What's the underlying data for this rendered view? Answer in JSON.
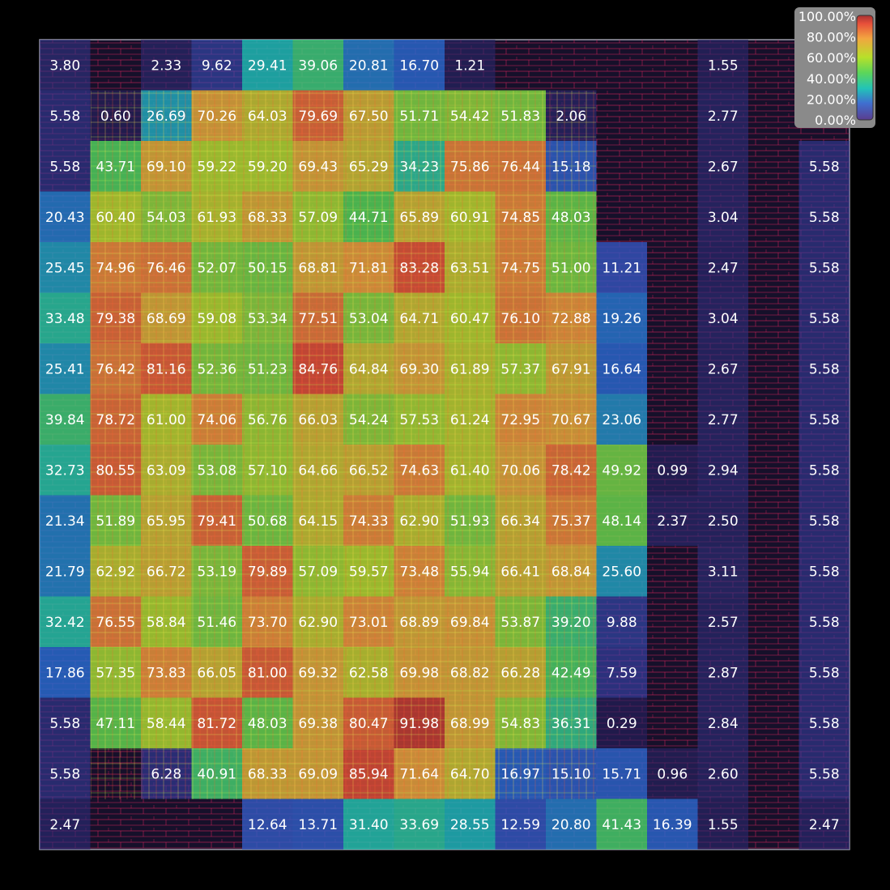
{
  "chart_data": {
    "type": "heatmap",
    "title": "",
    "xlabel": "",
    "ylabel": "",
    "rows": 16,
    "cols": 16,
    "unit": "%",
    "value_range": [
      0,
      100
    ],
    "legend": {
      "placement": "top-right",
      "colormap": [
        "#5a3d8f",
        "#3f6fd0",
        "#22c3b8",
        "#5bd65a",
        "#b8e02a",
        "#f2a540",
        "#e8503a",
        "#a83232"
      ],
      "tick_labels": [
        "100.00%",
        "80.00%",
        "60.00%",
        "40.00%",
        "20.00%",
        "0.00%"
      ]
    },
    "values": [
      [
        "3.80",
        "",
        "2.33",
        "9.62",
        "29.41",
        "39.06",
        "20.81",
        "16.70",
        "1.21",
        "",
        "",
        "",
        "",
        "1.55",
        "",
        ""
      ],
      [
        "5.58",
        "0.60",
        "26.69",
        "70.26",
        "64.03",
        "79.69",
        "67.50",
        "51.71",
        "54.42",
        "51.83",
        "2.06",
        "",
        "",
        "2.77",
        "",
        ""
      ],
      [
        "5.58",
        "43.71",
        "69.10",
        "59.22",
        "59.20",
        "69.43",
        "65.29",
        "34.23",
        "75.86",
        "76.44",
        "15.18",
        "",
        "",
        "2.67",
        "",
        "5.58"
      ],
      [
        "20.43",
        "60.40",
        "54.03",
        "61.93",
        "68.33",
        "57.09",
        "44.71",
        "65.89",
        "60.91",
        "74.85",
        "48.03",
        "",
        "",
        "3.04",
        "",
        "5.58"
      ],
      [
        "25.45",
        "74.96",
        "76.46",
        "52.07",
        "50.15",
        "68.81",
        "71.81",
        "83.28",
        "63.51",
        "74.75",
        "51.00",
        "11.21",
        "",
        "2.47",
        "",
        "5.58"
      ],
      [
        "33.48",
        "79.38",
        "68.69",
        "59.08",
        "53.34",
        "77.51",
        "53.04",
        "64.71",
        "60.47",
        "76.10",
        "72.88",
        "19.26",
        "",
        "3.04",
        "",
        "5.58"
      ],
      [
        "25.41",
        "76.42",
        "81.16",
        "52.36",
        "51.23",
        "84.76",
        "64.84",
        "69.30",
        "61.89",
        "57.37",
        "67.91",
        "16.64",
        "",
        "2.67",
        "",
        "5.58"
      ],
      [
        "39.84",
        "78.72",
        "61.00",
        "74.06",
        "56.76",
        "66.03",
        "54.24",
        "57.53",
        "61.24",
        "72.95",
        "70.67",
        "23.06",
        "",
        "2.77",
        "",
        "5.58"
      ],
      [
        "32.73",
        "80.55",
        "63.09",
        "53.08",
        "57.10",
        "64.66",
        "66.52",
        "74.63",
        "61.40",
        "70.06",
        "78.42",
        "49.92",
        "0.99",
        "2.94",
        "",
        "5.58"
      ],
      [
        "21.34",
        "51.89",
        "65.95",
        "79.41",
        "50.68",
        "64.15",
        "74.33",
        "62.90",
        "51.93",
        "66.34",
        "75.37",
        "48.14",
        "2.37",
        "2.50",
        "",
        "5.58"
      ],
      [
        "21.79",
        "62.92",
        "66.72",
        "53.19",
        "79.89",
        "57.09",
        "59.57",
        "73.48",
        "55.94",
        "66.41",
        "68.84",
        "25.60",
        "",
        "3.11",
        "",
        "5.58"
      ],
      [
        "32.42",
        "76.55",
        "58.84",
        "51.46",
        "73.70",
        "62.90",
        "73.01",
        "68.89",
        "69.84",
        "53.87",
        "39.20",
        "9.88",
        "",
        "2.57",
        "",
        "5.58"
      ],
      [
        "17.86",
        "57.35",
        "73.83",
        "66.05",
        "81.00",
        "69.32",
        "62.58",
        "69.98",
        "68.82",
        "66.28",
        "42.49",
        "7.59",
        "",
        "2.87",
        "",
        "5.58"
      ],
      [
        "5.58",
        "47.11",
        "58.44",
        "81.72",
        "48.03",
        "69.38",
        "80.47",
        "91.98",
        "68.99",
        "54.83",
        "36.31",
        "0.29",
        "",
        "2.84",
        "",
        "5.58"
      ],
      [
        "5.58",
        "",
        "6.28",
        "40.91",
        "68.33",
        "69.09",
        "85.94",
        "71.64",
        "64.70",
        "16.97",
        "15.10",
        "15.71",
        "0.96",
        "2.60",
        "",
        "5.58"
      ],
      [
        "2.47",
        "",
        "",
        "",
        "12.64",
        "13.71",
        "31.40",
        "33.69",
        "28.55",
        "12.59",
        "20.80",
        "41.43",
        "16.39",
        "1.55",
        "",
        "2.47"
      ]
    ]
  }
}
